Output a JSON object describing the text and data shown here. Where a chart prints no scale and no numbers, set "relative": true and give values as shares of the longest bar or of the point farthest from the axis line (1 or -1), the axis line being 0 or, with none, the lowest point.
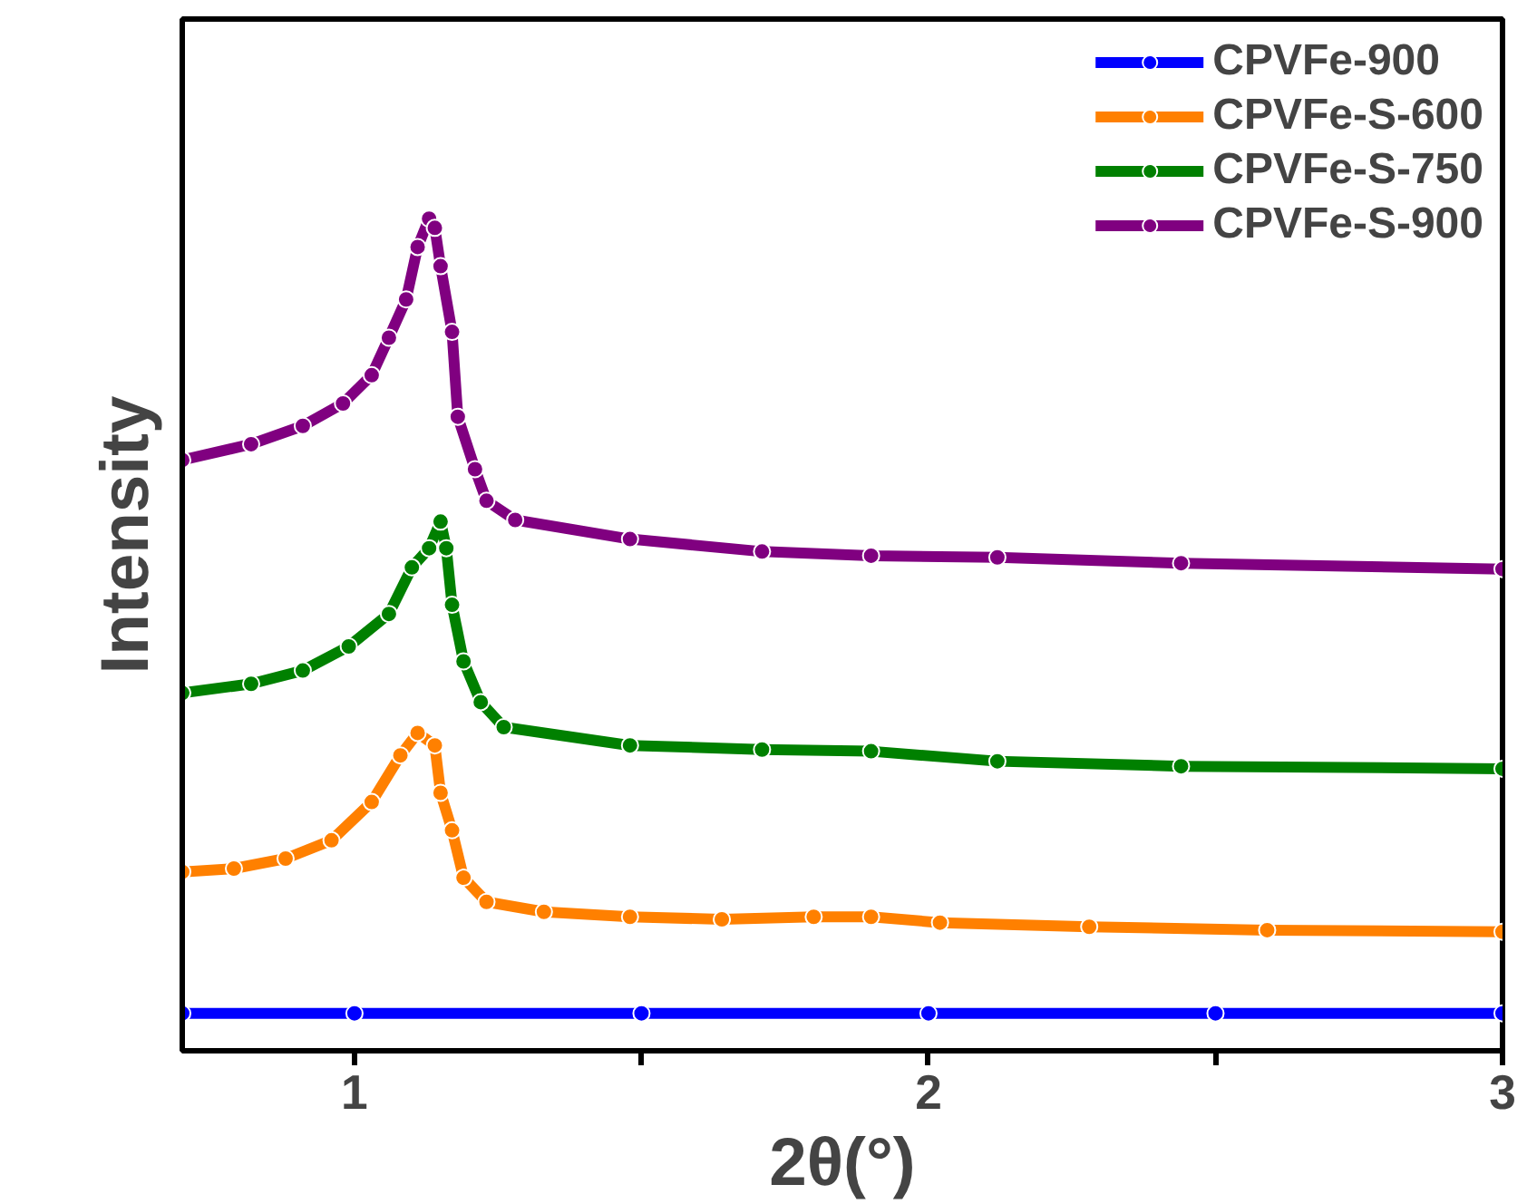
{
  "chart_data": {
    "type": "line",
    "relative": true,
    "xlabel": "2θ(°)",
    "ylabel": "Intensity",
    "tick_labels": "x",
    "xlim": [
      0.7,
      3
    ],
    "xticks": [
      1,
      {
        "value": 1.5,
        "label": null
      },
      2,
      {
        "value": 2.5,
        "label": null
      },
      3
    ],
    "legend": "top right",
    "marker": "circle",
    "line_style": "solid",
    "grid": false,
    "series": [
      {
        "name": "CPVFe-900",
        "color": "#0000ff",
        "x": [
          0.7,
          1.0,
          1.5,
          2.0,
          2.5,
          3.0
        ],
        "values": [
          0.045,
          0.045,
          0.045,
          0.045,
          0.045,
          0.045
        ]
      },
      {
        "name": "CPVFe-S-600",
        "color": "#ff8000",
        "x": [
          0.7,
          0.79,
          0.88,
          0.96,
          1.03,
          1.08,
          1.11,
          1.14,
          1.15,
          1.17,
          1.19,
          1.23,
          1.33,
          1.48,
          1.64,
          1.8,
          1.9,
          2.02,
          2.28,
          2.59,
          3.0
        ],
        "values": [
          0.215,
          0.219,
          0.231,
          0.253,
          0.299,
          0.355,
          0.382,
          0.367,
          0.31,
          0.265,
          0.208,
          0.179,
          0.167,
          0.161,
          0.158,
          0.161,
          0.161,
          0.154,
          0.149,
          0.145,
          0.143
        ]
      },
      {
        "name": "CPVFe-S-750",
        "color": "#008000",
        "x": [
          0.7,
          0.82,
          0.91,
          0.99,
          1.06,
          1.1,
          1.13,
          1.15,
          1.16,
          1.17,
          1.19,
          1.22,
          1.26,
          1.48,
          1.71,
          1.9,
          2.12,
          2.44,
          3.0
        ],
        "values": [
          0.43,
          0.441,
          0.457,
          0.486,
          0.525,
          0.581,
          0.604,
          0.636,
          0.604,
          0.536,
          0.468,
          0.419,
          0.389,
          0.367,
          0.362,
          0.36,
          0.348,
          0.342,
          0.339
        ]
      },
      {
        "name": "CPVFe-S-900",
        "color": "#800080",
        "x": [
          0.7,
          0.82,
          0.91,
          0.98,
          1.03,
          1.06,
          1.09,
          1.11,
          1.13,
          1.14,
          1.15,
          1.17,
          1.18,
          1.21,
          1.23,
          1.28,
          1.48,
          1.71,
          1.9,
          2.12,
          2.44,
          3.0
        ],
        "values": [
          0.71,
          0.729,
          0.751,
          0.778,
          0.812,
          0.857,
          0.903,
          0.966,
          1.0,
          0.989,
          0.943,
          0.864,
          0.762,
          0.699,
          0.661,
          0.638,
          0.615,
          0.6,
          0.595,
          0.593,
          0.586,
          0.579
        ]
      }
    ]
  }
}
